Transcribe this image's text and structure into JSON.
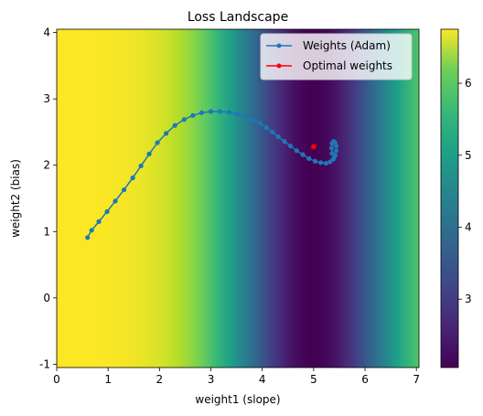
{
  "chart_data": {
    "type": "line",
    "title": "Loss Landscape",
    "xlabel": "weight1 (slope)",
    "ylabel": "weight2 (bias)",
    "xlim": [
      0,
      7.05
    ],
    "ylim": [
      -1.05,
      4.05
    ],
    "x_ticks": [
      "0",
      "1",
      "2",
      "3",
      "4",
      "5",
      "6",
      "7"
    ],
    "y_ticks": [
      "-1",
      "0",
      "1",
      "2",
      "3",
      "4"
    ],
    "grid": false,
    "legend_position": "top-right",
    "background": {
      "type": "heatmap",
      "colormap": "viridis",
      "optimal_slope": 5.0,
      "color_range": [
        2.05,
        6.75
      ],
      "colorbar_ticks": [
        "3",
        "4",
        "5",
        "6"
      ]
    },
    "series": [
      {
        "name": "Weights (Adam)",
        "color": "#1f77b4",
        "marker": "circle",
        "x": [
          0.6,
          0.68,
          0.82,
          0.98,
          1.14,
          1.31,
          1.48,
          1.64,
          1.8,
          1.96,
          2.13,
          2.3,
          2.48,
          2.65,
          2.82,
          3.0,
          3.18,
          3.36,
          3.52,
          3.68,
          3.82,
          3.96,
          4.08,
          4.2,
          4.31,
          4.43,
          4.55,
          4.67,
          4.79,
          4.91,
          5.03,
          5.14,
          5.24,
          5.32,
          5.38,
          5.42,
          5.44,
          5.44,
          5.42,
          5.39,
          5.36,
          5.35,
          5.36,
          5.39
        ],
        "y": [
          0.91,
          1.02,
          1.15,
          1.3,
          1.46,
          1.63,
          1.81,
          1.99,
          2.17,
          2.34,
          2.48,
          2.6,
          2.69,
          2.75,
          2.79,
          2.81,
          2.81,
          2.8,
          2.77,
          2.73,
          2.69,
          2.63,
          2.57,
          2.5,
          2.43,
          2.36,
          2.29,
          2.22,
          2.16,
          2.1,
          2.06,
          2.04,
          2.03,
          2.05,
          2.09,
          2.15,
          2.22,
          2.29,
          2.34,
          2.36,
          2.33,
          2.26,
          2.18,
          2.1
        ]
      },
      {
        "name": "Optimal weights",
        "color": "#ff0000",
        "marker": "circle",
        "x": [
          5.0
        ],
        "y": [
          2.28
        ]
      }
    ]
  }
}
